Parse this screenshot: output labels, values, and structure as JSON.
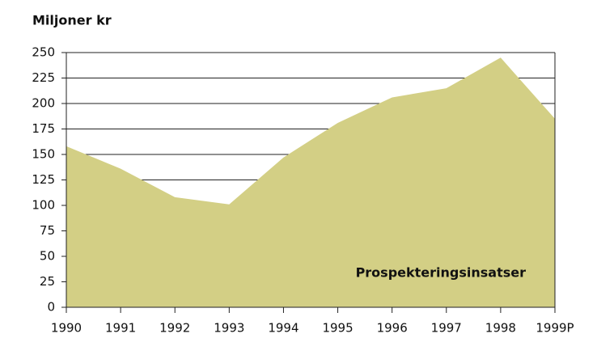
{
  "chart_data": {
    "type": "area",
    "title": "Miljoner kr",
    "annotation": "Prospekteringsinsatser",
    "categories": [
      "1990",
      "1991",
      "1992",
      "1993",
      "1994",
      "1995",
      "1996",
      "1997",
      "1998",
      "1999P"
    ],
    "values": [
      158,
      136,
      108,
      101,
      147,
      181,
      206,
      215,
      245,
      185
    ],
    "color": "#d3cf85",
    "ylim": [
      0,
      250
    ],
    "yticks": [
      0,
      25,
      50,
      75,
      100,
      125,
      150,
      175,
      200,
      225,
      250
    ],
    "grid": true
  }
}
